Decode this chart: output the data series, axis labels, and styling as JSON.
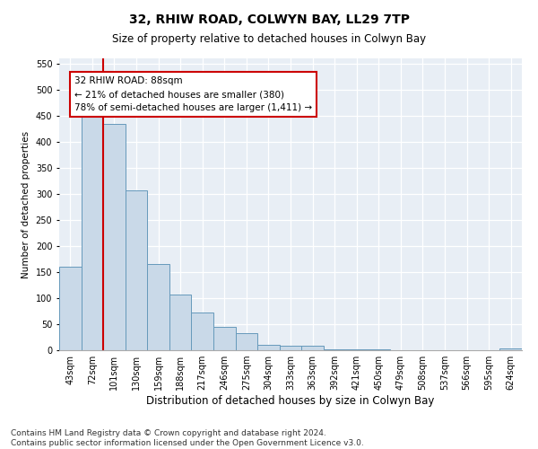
{
  "title": "32, RHIW ROAD, COLWYN BAY, LL29 7TP",
  "subtitle": "Size of property relative to detached houses in Colwyn Bay",
  "xlabel": "Distribution of detached houses by size in Colwyn Bay",
  "ylabel": "Number of detached properties",
  "categories": [
    "43sqm",
    "72sqm",
    "101sqm",
    "130sqm",
    "159sqm",
    "188sqm",
    "217sqm",
    "246sqm",
    "275sqm",
    "304sqm",
    "333sqm",
    "363sqm",
    "392sqm",
    "421sqm",
    "450sqm",
    "479sqm",
    "508sqm",
    "537sqm",
    "566sqm",
    "595sqm",
    "624sqm"
  ],
  "values": [
    160,
    450,
    435,
    307,
    165,
    106,
    73,
    44,
    32,
    10,
    8,
    8,
    2,
    1,
    1,
    0.5,
    0.5,
    0.3,
    0.3,
    0.3,
    3
  ],
  "bar_color": "#c9d9e8",
  "bar_edge_color": "#6699bb",
  "vline_x": 1.5,
  "vline_color": "#cc0000",
  "annotation_text": "32 RHIW ROAD: 88sqm\n← 21% of detached houses are smaller (380)\n78% of semi-detached houses are larger (1,411) →",
  "annotation_box_color": "#ffffff",
  "annotation_box_edge": "#cc0000",
  "ylim": [
    0,
    560
  ],
  "yticks": [
    0,
    50,
    100,
    150,
    200,
    250,
    300,
    350,
    400,
    450,
    500,
    550
  ],
  "background_color": "#e8eef5",
  "footer_text": "Contains HM Land Registry data © Crown copyright and database right 2024.\nContains public sector information licensed under the Open Government Licence v3.0.",
  "title_fontsize": 10,
  "subtitle_fontsize": 8.5,
  "xlabel_fontsize": 8.5,
  "ylabel_fontsize": 7.5,
  "tick_fontsize": 7,
  "footer_fontsize": 6.5,
  "annotation_fontsize": 7.5
}
